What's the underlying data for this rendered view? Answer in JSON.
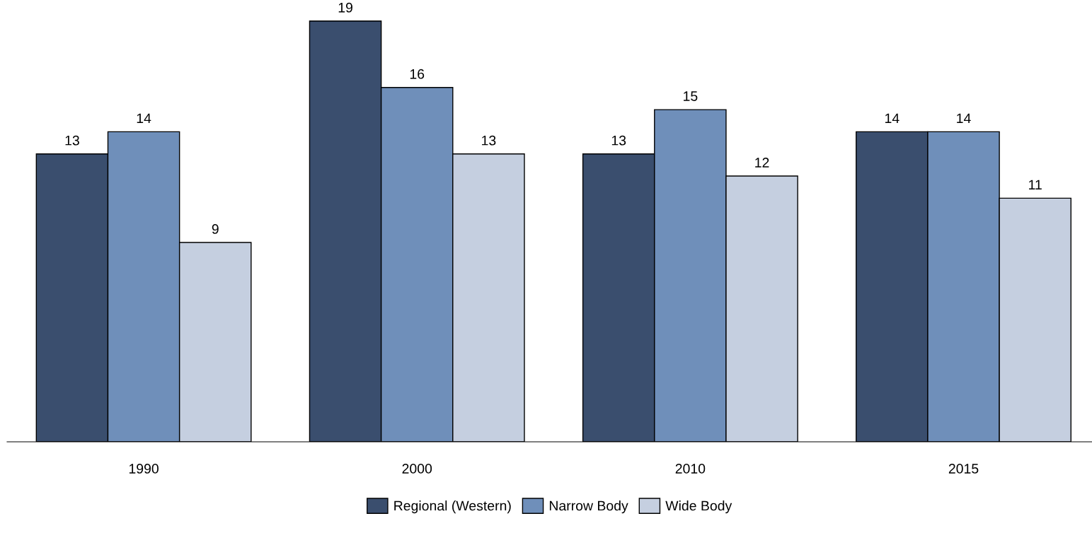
{
  "chart_data": {
    "type": "bar",
    "categories": [
      "1990",
      "2000",
      "2010",
      "2015"
    ],
    "series": [
      {
        "name": "Regional (Western)",
        "color": "#3a4e6e",
        "values": [
          13,
          19,
          13,
          14
        ]
      },
      {
        "name": "Narrow Body",
        "color": "#6f8fba",
        "values": [
          14,
          16,
          15,
          14
        ]
      },
      {
        "name": "Wide Body",
        "color": "#c5cfe0",
        "values": [
          9,
          13,
          12,
          11
        ]
      }
    ],
    "tick_labels": "x",
    "data_labels": true,
    "legend": "bottom",
    "grid": false
  }
}
